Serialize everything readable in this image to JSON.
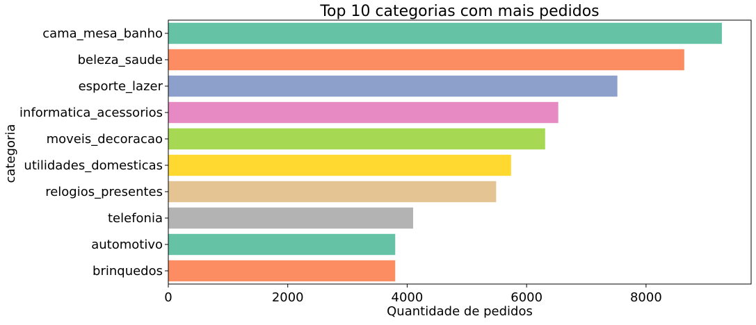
{
  "chart_data": {
    "type": "bar",
    "orientation": "horizontal",
    "title": "Top 10 categorias com mais pedidos",
    "xlabel": "Quantidade de pedidos",
    "ylabel": "categoria",
    "xlim": [
      0,
      9760
    ],
    "xticks": [
      0,
      2000,
      4000,
      6000,
      8000
    ],
    "grid": false,
    "categories": [
      "cama_mesa_banho",
      "beleza_saude",
      "esporte_lazer",
      "informatica_acessorios",
      "moveis_decoracao",
      "utilidades_domesticas",
      "relogios_presentes",
      "telefonia",
      "automotivo",
      "brinquedos"
    ],
    "values": [
      9270,
      8640,
      7520,
      6530,
      6310,
      5740,
      5490,
      4100,
      3800,
      3800
    ],
    "colors": [
      "#66c2a5",
      "#fc8d62",
      "#8da0cb",
      "#e78ac3",
      "#a6d854",
      "#ffd92f",
      "#e5c494",
      "#b3b3b3",
      "#66c2a5",
      "#fc8d62"
    ]
  }
}
